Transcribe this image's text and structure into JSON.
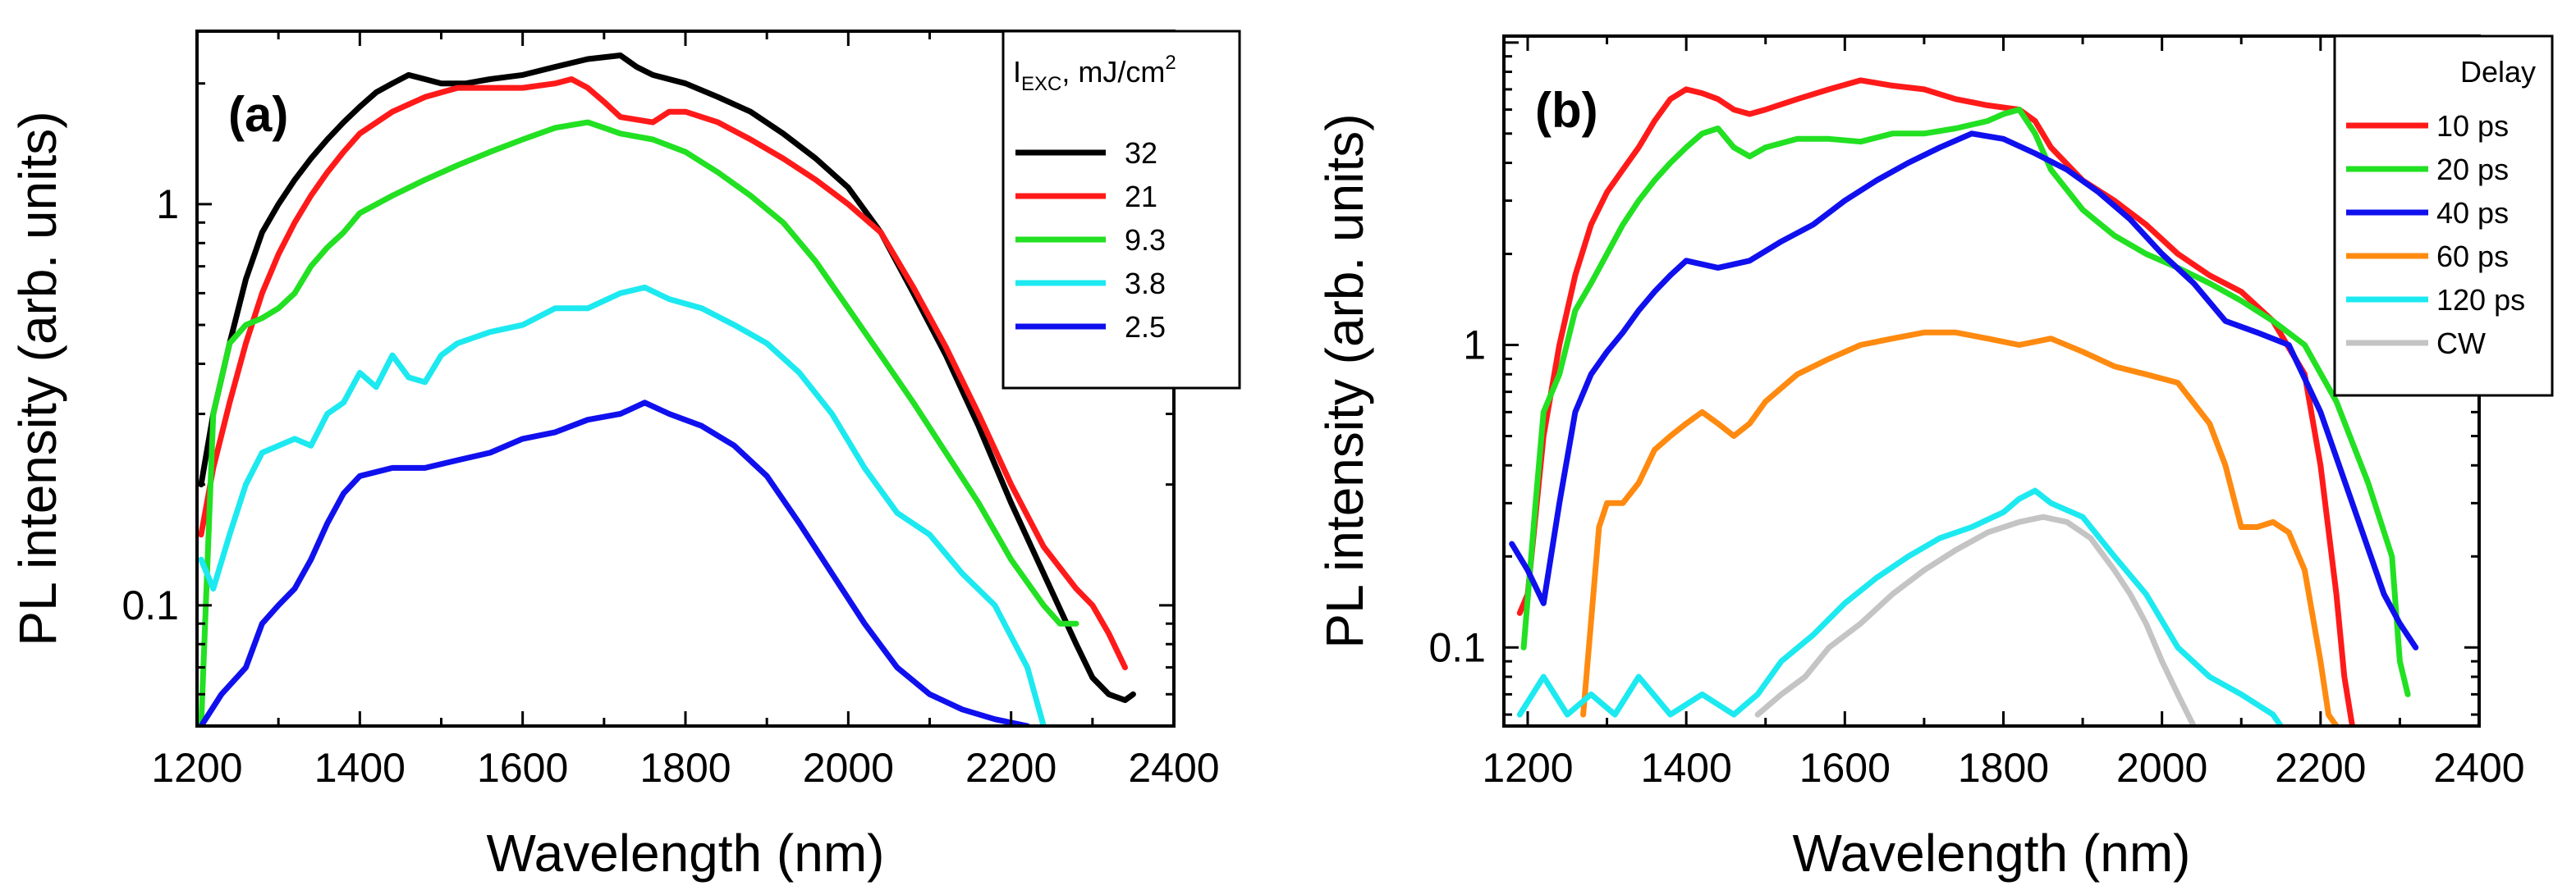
{
  "colors": {
    "black": "#000000",
    "red": "#ff1a1a",
    "green": "#22e022",
    "cyan": "#1de9f0",
    "blue": "#1010ee",
    "orange": "#ff8a10",
    "gray": "#c4c4c4"
  },
  "chart_data": [
    {
      "type": "line",
      "panel_label": "(a)",
      "xlabel": "Wavelength (nm)",
      "ylabel": "PL intensity (arb. units)",
      "xscale": "linear",
      "yscale": "log",
      "xlim": [
        1200,
        2400
      ],
      "ylim": [
        0.05,
        2.7
      ],
      "xticks": [
        1200,
        1400,
        1600,
        1800,
        2000,
        2200,
        2400
      ],
      "yticks": [
        {
          "value": 0.1,
          "label": "0.1"
        },
        {
          "value": 1,
          "label": "1"
        }
      ],
      "legend": {
        "title_main": "I",
        "title_sub": "EXC",
        "title_rest": ", mJ/cm",
        "title_sup": "2",
        "placement": "top-right"
      },
      "series": [
        {
          "name": "32",
          "color": "#000000",
          "x": [
            1205,
            1220,
            1240,
            1260,
            1280,
            1300,
            1320,
            1340,
            1360,
            1380,
            1400,
            1420,
            1440,
            1460,
            1480,
            1500,
            1530,
            1560,
            1600,
            1640,
            1680,
            1720,
            1740,
            1760,
            1800,
            1840,
            1880,
            1920,
            1960,
            2000,
            2040,
            2080,
            2120,
            2160,
            2200,
            2240,
            2280,
            2300,
            2320,
            2340,
            2350
          ],
          "y": [
            0.2,
            0.3,
            0.45,
            0.65,
            0.85,
            1.0,
            1.15,
            1.3,
            1.45,
            1.6,
            1.75,
            1.9,
            2.0,
            2.1,
            2.05,
            2.0,
            2.0,
            2.05,
            2.1,
            2.2,
            2.3,
            2.35,
            2.2,
            2.1,
            2.0,
            1.85,
            1.7,
            1.5,
            1.3,
            1.1,
            0.85,
            0.6,
            0.42,
            0.28,
            0.18,
            0.12,
            0.08,
            0.066,
            0.06,
            0.058,
            0.06
          ]
        },
        {
          "name": "21",
          "color": "#ff1a1a",
          "x": [
            1205,
            1220,
            1240,
            1260,
            1280,
            1300,
            1320,
            1340,
            1360,
            1380,
            1400,
            1440,
            1480,
            1520,
            1560,
            1600,
            1640,
            1660,
            1680,
            1700,
            1720,
            1760,
            1780,
            1800,
            1840,
            1880,
            1920,
            1960,
            2000,
            2040,
            2080,
            2120,
            2160,
            2200,
            2240,
            2280,
            2300,
            2320,
            2340
          ],
          "y": [
            0.15,
            0.22,
            0.32,
            0.45,
            0.6,
            0.75,
            0.9,
            1.05,
            1.2,
            1.35,
            1.5,
            1.7,
            1.85,
            1.95,
            1.95,
            1.95,
            2.0,
            2.05,
            1.95,
            1.8,
            1.65,
            1.6,
            1.7,
            1.7,
            1.6,
            1.45,
            1.3,
            1.15,
            1.0,
            0.85,
            0.62,
            0.44,
            0.3,
            0.2,
            0.14,
            0.11,
            0.1,
            0.085,
            0.07
          ]
        },
        {
          "name": "9.3",
          "color": "#22e022",
          "x": [
            1205,
            1220,
            1240,
            1260,
            1280,
            1300,
            1320,
            1340,
            1360,
            1380,
            1400,
            1440,
            1480,
            1520,
            1560,
            1600,
            1640,
            1680,
            1700,
            1720,
            1760,
            1800,
            1840,
            1880,
            1920,
            1960,
            2000,
            2040,
            2080,
            2120,
            2160,
            2200,
            2240,
            2260,
            2280
          ],
          "y": [
            0.05,
            0.3,
            0.45,
            0.5,
            0.52,
            0.55,
            0.6,
            0.7,
            0.78,
            0.85,
            0.95,
            1.05,
            1.15,
            1.25,
            1.35,
            1.45,
            1.55,
            1.6,
            1.55,
            1.5,
            1.45,
            1.35,
            1.2,
            1.05,
            0.9,
            0.72,
            0.55,
            0.42,
            0.32,
            0.24,
            0.18,
            0.13,
            0.1,
            0.09,
            0.09
          ]
        },
        {
          "name": "3.8",
          "color": "#1de9f0",
          "x": [
            1205,
            1220,
            1240,
            1260,
            1280,
            1300,
            1320,
            1340,
            1360,
            1380,
            1400,
            1420,
            1440,
            1460,
            1480,
            1500,
            1520,
            1560,
            1600,
            1640,
            1680,
            1720,
            1750,
            1780,
            1820,
            1860,
            1900,
            1940,
            1980,
            2020,
            2060,
            2100,
            2140,
            2180,
            2220,
            2240
          ],
          "y": [
            0.13,
            0.11,
            0.15,
            0.2,
            0.24,
            0.25,
            0.26,
            0.25,
            0.3,
            0.32,
            0.38,
            0.35,
            0.42,
            0.37,
            0.36,
            0.42,
            0.45,
            0.48,
            0.5,
            0.55,
            0.55,
            0.6,
            0.62,
            0.58,
            0.55,
            0.5,
            0.45,
            0.38,
            0.3,
            0.22,
            0.17,
            0.15,
            0.12,
            0.1,
            0.07,
            0.05
          ]
        },
        {
          "name": "2.5",
          "color": "#1010ee",
          "x": [
            1205,
            1230,
            1260,
            1280,
            1300,
            1320,
            1340,
            1360,
            1380,
            1400,
            1440,
            1480,
            1520,
            1560,
            1600,
            1640,
            1680,
            1720,
            1750,
            1780,
            1820,
            1860,
            1900,
            1940,
            1980,
            2020,
            2060,
            2100,
            2140,
            2180,
            2220
          ],
          "y": [
            0.05,
            0.06,
            0.07,
            0.09,
            0.1,
            0.11,
            0.13,
            0.16,
            0.19,
            0.21,
            0.22,
            0.22,
            0.23,
            0.24,
            0.26,
            0.27,
            0.29,
            0.3,
            0.32,
            0.3,
            0.28,
            0.25,
            0.21,
            0.16,
            0.12,
            0.09,
            0.07,
            0.06,
            0.055,
            0.052,
            0.05
          ]
        }
      ]
    },
    {
      "type": "line",
      "panel_label": "(b)",
      "xlabel": "Wavelength (nm)",
      "ylabel": "PL intensity (arb. units)",
      "xscale": "linear",
      "yscale": "log",
      "xlim": [
        1170,
        2400
      ],
      "ylim": [
        0.055,
        10.5
      ],
      "xticks": [
        1200,
        1400,
        1600,
        1800,
        2000,
        2200,
        2400
      ],
      "yticks": [
        {
          "value": 0.1,
          "label": "0.1"
        },
        {
          "value": 1,
          "label": "1"
        }
      ],
      "legend": {
        "title": "Delay",
        "placement": "top-right"
      },
      "series": [
        {
          "name": "10 ps",
          "color": "#ff1a1a",
          "x": [
            1190,
            1200,
            1220,
            1240,
            1260,
            1280,
            1300,
            1320,
            1340,
            1360,
            1380,
            1400,
            1420,
            1440,
            1460,
            1480,
            1500,
            1540,
            1580,
            1620,
            1660,
            1700,
            1740,
            1780,
            1820,
            1840,
            1860,
            1900,
            1940,
            1980,
            2020,
            2060,
            2100,
            2140,
            2180,
            2200,
            2220,
            2230,
            2240
          ],
          "y": [
            0.13,
            0.15,
            0.5,
            1.0,
            1.7,
            2.5,
            3.2,
            3.8,
            4.5,
            5.5,
            6.5,
            7.0,
            6.8,
            6.5,
            6.0,
            5.8,
            6.0,
            6.5,
            7.0,
            7.5,
            7.2,
            7.0,
            6.5,
            6.2,
            6.0,
            5.5,
            4.5,
            3.5,
            3.0,
            2.5,
            2.0,
            1.7,
            1.5,
            1.2,
            0.8,
            0.4,
            0.15,
            0.08,
            0.055
          ]
        },
        {
          "name": "20 ps",
          "color": "#22e022",
          "x": [
            1195,
            1210,
            1220,
            1240,
            1260,
            1280,
            1300,
            1320,
            1340,
            1360,
            1380,
            1400,
            1420,
            1440,
            1460,
            1480,
            1500,
            1540,
            1580,
            1620,
            1660,
            1700,
            1740,
            1780,
            1800,
            1820,
            1840,
            1860,
            1900,
            1940,
            1980,
            2020,
            2060,
            2100,
            2140,
            2180,
            2220,
            2260,
            2290,
            2300,
            2310
          ],
          "y": [
            0.1,
            0.3,
            0.6,
            0.8,
            1.3,
            1.6,
            2.0,
            2.5,
            3.0,
            3.5,
            4.0,
            4.5,
            5.0,
            5.2,
            4.5,
            4.2,
            4.5,
            4.8,
            4.8,
            4.7,
            5.0,
            5.0,
            5.2,
            5.5,
            5.8,
            6.0,
            5.0,
            3.8,
            2.8,
            2.3,
            2.0,
            1.8,
            1.6,
            1.4,
            1.2,
            1.0,
            0.65,
            0.35,
            0.2,
            0.09,
            0.07
          ]
        },
        {
          "name": "40 ps",
          "color": "#1010ee",
          "x": [
            1180,
            1200,
            1220,
            1240,
            1260,
            1280,
            1300,
            1320,
            1340,
            1360,
            1380,
            1400,
            1440,
            1480,
            1520,
            1560,
            1600,
            1640,
            1680,
            1720,
            1760,
            1800,
            1840,
            1880,
            1920,
            1960,
            2000,
            2040,
            2080,
            2120,
            2160,
            2200,
            2240,
            2280,
            2300,
            2320
          ],
          "y": [
            0.22,
            0.18,
            0.14,
            0.3,
            0.6,
            0.8,
            0.95,
            1.1,
            1.3,
            1.5,
            1.7,
            1.9,
            1.8,
            1.9,
            2.2,
            2.5,
            3.0,
            3.5,
            4.0,
            4.5,
            5.0,
            4.8,
            4.3,
            3.8,
            3.2,
            2.6,
            2.0,
            1.6,
            1.2,
            1.1,
            1.0,
            0.6,
            0.3,
            0.15,
            0.12,
            0.1
          ]
        },
        {
          "name": "60 ps",
          "color": "#ff8a10",
          "x": [
            1270,
            1290,
            1300,
            1320,
            1340,
            1360,
            1380,
            1400,
            1420,
            1440,
            1460,
            1480,
            1500,
            1540,
            1580,
            1620,
            1660,
            1700,
            1740,
            1780,
            1820,
            1860,
            1900,
            1940,
            1980,
            2020,
            2060,
            2080,
            2100,
            2120,
            2140,
            2160,
            2180,
            2200,
            2210,
            2220
          ],
          "y": [
            0.06,
            0.25,
            0.3,
            0.3,
            0.35,
            0.45,
            0.5,
            0.55,
            0.6,
            0.55,
            0.5,
            0.55,
            0.65,
            0.8,
            0.9,
            1.0,
            1.05,
            1.1,
            1.1,
            1.05,
            1.0,
            1.05,
            0.95,
            0.85,
            0.8,
            0.75,
            0.55,
            0.4,
            0.25,
            0.25,
            0.26,
            0.24,
            0.18,
            0.09,
            0.06,
            0.055
          ]
        },
        {
          "name": "120 ps",
          "color": "#1de9f0",
          "x": [
            1190,
            1220,
            1250,
            1280,
            1310,
            1340,
            1380,
            1420,
            1460,
            1490,
            1520,
            1560,
            1600,
            1640,
            1680,
            1720,
            1760,
            1800,
            1820,
            1840,
            1860,
            1900,
            1940,
            1980,
            2020,
            2060,
            2100,
            2140,
            2150
          ],
          "y": [
            0.06,
            0.08,
            0.06,
            0.07,
            0.06,
            0.08,
            0.06,
            0.07,
            0.06,
            0.07,
            0.09,
            0.11,
            0.14,
            0.17,
            0.2,
            0.23,
            0.25,
            0.28,
            0.31,
            0.33,
            0.3,
            0.27,
            0.2,
            0.15,
            0.1,
            0.08,
            0.07,
            0.06,
            0.055
          ]
        },
        {
          "name": "CW",
          "color": "#c4c4c4",
          "x": [
            1490,
            1520,
            1550,
            1580,
            1620,
            1660,
            1700,
            1740,
            1780,
            1820,
            1850,
            1880,
            1910,
            1940,
            1960,
            1980,
            2000,
            2020,
            2040
          ],
          "y": [
            0.06,
            0.07,
            0.08,
            0.1,
            0.12,
            0.15,
            0.18,
            0.21,
            0.24,
            0.26,
            0.27,
            0.26,
            0.23,
            0.18,
            0.15,
            0.12,
            0.09,
            0.07,
            0.055
          ]
        }
      ]
    }
  ]
}
